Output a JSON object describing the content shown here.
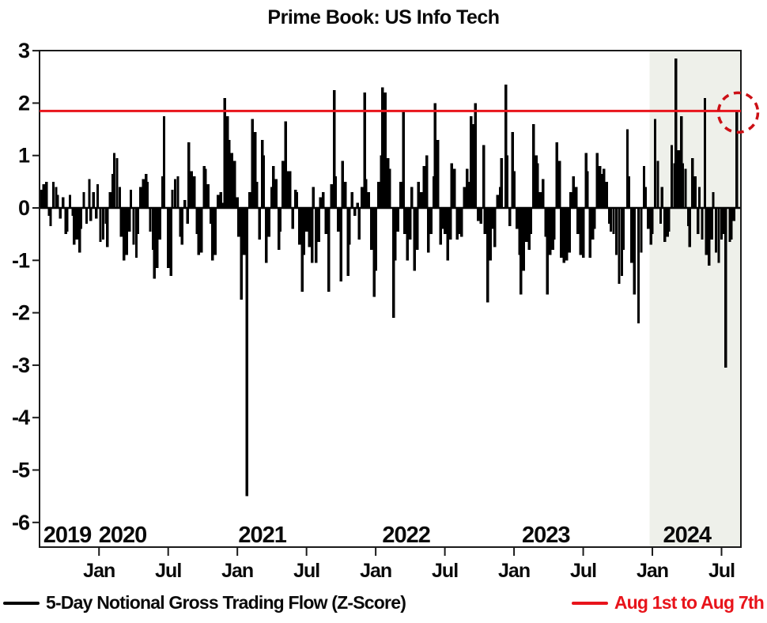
{
  "title": "Prime Book: US Info Tech",
  "legend": {
    "series_label": "5-Day Notional Gross Trading Flow (Z-Score)",
    "reference_label": "Aug 1st to Aug 7th"
  },
  "colors": {
    "bar": "#000000",
    "reference_line": "#e8141b",
    "highlight_circle": "#cc1016",
    "shaded_region": "#eef0ea",
    "frame": "#1a1a1a"
  },
  "chart_data": {
    "type": "bar",
    "title": "Prime Book: US Info Tech",
    "xlabel": "",
    "ylabel": "",
    "x_unit": "decimal_year",
    "x_domain": [
      2019.57,
      2024.64
    ],
    "ylim": [
      -6,
      3
    ],
    "grid": false,
    "legend_position": "bottom",
    "y_ticks": [
      3,
      2,
      1,
      0,
      -1,
      -2,
      -3,
      -4,
      -5,
      -6
    ],
    "x_ticks": [
      {
        "t": 2020.0,
        "label": "Jan"
      },
      {
        "t": 2020.5,
        "label": "Jul"
      },
      {
        "t": 2021.0,
        "label": "Jan"
      },
      {
        "t": 2021.5,
        "label": "Jul"
      },
      {
        "t": 2022.0,
        "label": "Jan"
      },
      {
        "t": 2022.5,
        "label": "Jul"
      },
      {
        "t": 2023.0,
        "label": "Jan"
      },
      {
        "t": 2023.5,
        "label": "Jul"
      },
      {
        "t": 2024.0,
        "label": "Jan"
      },
      {
        "t": 2024.5,
        "label": "Jul"
      }
    ],
    "year_labels": [
      {
        "t": 2019.77,
        "label": "2019"
      },
      {
        "t": 2020.17,
        "label": "2020"
      },
      {
        "t": 2021.18,
        "label": "2021"
      },
      {
        "t": 2022.22,
        "label": "2022"
      },
      {
        "t": 2023.23,
        "label": "2023"
      },
      {
        "t": 2024.25,
        "label": "2024"
      }
    ],
    "series_label": "5-Day Notional Gross Trading Flow (Z-Score)",
    "reference_line": {
      "value": 1.85,
      "label": "Aug 1st to Aug 7th"
    },
    "highlight_circle": {
      "t": 2024.62,
      "value": 1.82,
      "radius": 25,
      "style": "dashed"
    },
    "shaded_region": {
      "from": 2023.98,
      "to": 2024.64
    },
    "bars": [
      [
        2019.58,
        0.35
      ],
      [
        2019.6,
        0.45
      ],
      [
        2019.62,
        0.5
      ],
      [
        2019.64,
        -0.15
      ],
      [
        2019.65,
        -0.35
      ],
      [
        2019.67,
        0.5
      ],
      [
        2019.69,
        0.4
      ],
      [
        2019.7,
        0.25
      ],
      [
        2019.72,
        -0.2
      ],
      [
        2019.74,
        0.2
      ],
      [
        2019.76,
        -0.5
      ],
      [
        2019.77,
        -0.45
      ],
      [
        2019.79,
        0.25
      ],
      [
        2019.81,
        -0.15
      ],
      [
        2019.82,
        -0.7
      ],
      [
        2019.84,
        -0.6
      ],
      [
        2019.86,
        -0.85
      ],
      [
        2019.87,
        -0.4
      ],
      [
        2019.89,
        0.3
      ],
      [
        2019.91,
        -0.3
      ],
      [
        2019.93,
        0.55
      ],
      [
        2019.94,
        -0.25
      ],
      [
        2019.96,
        0.3
      ],
      [
        2019.98,
        -0.2
      ],
      [
        2019.99,
        0.45
      ],
      [
        2020.01,
        -0.65
      ],
      [
        2020.03,
        -0.6
      ],
      [
        2020.05,
        -0.3
      ],
      [
        2020.06,
        -0.75
      ],
      [
        2020.08,
        0.3
      ],
      [
        2020.1,
        0.65
      ],
      [
        2020.11,
        1.05
      ],
      [
        2020.13,
        0.95
      ],
      [
        2020.15,
        0.4
      ],
      [
        2020.16,
        -0.55
      ],
      [
        2020.18,
        -1.0
      ],
      [
        2020.2,
        -0.9
      ],
      [
        2020.22,
        -0.45
      ],
      [
        2020.23,
        0.35
      ],
      [
        2020.25,
        -0.7
      ],
      [
        2020.27,
        -0.95
      ],
      [
        2020.28,
        -0.5
      ],
      [
        2020.3,
        0.4
      ],
      [
        2020.32,
        0.55
      ],
      [
        2020.34,
        0.65
      ],
      [
        2020.35,
        0.5
      ],
      [
        2020.37,
        -0.45
      ],
      [
        2020.39,
        -0.8
      ],
      [
        2020.4,
        -1.35
      ],
      [
        2020.42,
        -1.15
      ],
      [
        2020.44,
        -0.6
      ],
      [
        2020.46,
        0.6
      ],
      [
        2020.47,
        1.75
      ],
      [
        2020.5,
        -1.15
      ],
      [
        2020.52,
        -1.3
      ],
      [
        2020.53,
        0.35
      ],
      [
        2020.55,
        0.55
      ],
      [
        2020.57,
        0.6
      ],
      [
        2020.59,
        -0.55
      ],
      [
        2020.6,
        -0.7
      ],
      [
        2020.62,
        0.15
      ],
      [
        2020.64,
        -0.3
      ],
      [
        2020.65,
        1.25
      ],
      [
        2020.67,
        0.7
      ],
      [
        2020.69,
        0.6
      ],
      [
        2020.71,
        -0.5
      ],
      [
        2020.72,
        -0.9
      ],
      [
        2020.74,
        -0.85
      ],
      [
        2020.76,
        0.8
      ],
      [
        2020.77,
        0.75
      ],
      [
        2020.79,
        0.45
      ],
      [
        2020.81,
        -0.3
      ],
      [
        2020.82,
        -1.0
      ],
      [
        2020.84,
        -0.9
      ],
      [
        2020.86,
        0.25
      ],
      [
        2020.88,
        0.3
      ],
      [
        2020.89,
        0.1
      ],
      [
        2020.91,
        2.1
      ],
      [
        2020.93,
        1.75
      ],
      [
        2020.94,
        1.3
      ],
      [
        2020.96,
        1.05
      ],
      [
        2020.98,
        0.9
      ],
      [
        2021.0,
        0.2
      ],
      [
        2021.01,
        -0.55
      ],
      [
        2021.03,
        -1.75
      ],
      [
        2021.05,
        -0.9
      ],
      [
        2021.07,
        -5.5
      ],
      [
        2021.09,
        0.3
      ],
      [
        2021.11,
        1.7
      ],
      [
        2021.13,
        1.45
      ],
      [
        2021.14,
        0.5
      ],
      [
        2021.16,
        -0.6
      ],
      [
        2021.18,
        1.3
      ],
      [
        2021.19,
        1.0
      ],
      [
        2021.21,
        -1.05
      ],
      [
        2021.23,
        -0.55
      ],
      [
        2021.25,
        0.4
      ],
      [
        2021.26,
        0.8
      ],
      [
        2021.28,
        0.55
      ],
      [
        2021.3,
        -0.8
      ],
      [
        2021.31,
        -0.45
      ],
      [
        2021.33,
        0.9
      ],
      [
        2021.35,
        1.65
      ],
      [
        2021.37,
        0.7
      ],
      [
        2021.38,
        0.7
      ],
      [
        2021.4,
        -0.4
      ],
      [
        2021.42,
        0.35
      ],
      [
        2021.43,
        0.3
      ],
      [
        2021.45,
        -0.7
      ],
      [
        2021.47,
        -1.6
      ],
      [
        2021.48,
        -0.9
      ],
      [
        2021.5,
        -0.45
      ],
      [
        2021.52,
        -0.75
      ],
      [
        2021.54,
        -1.05
      ],
      [
        2021.55,
        0.4
      ],
      [
        2021.57,
        -1.05
      ],
      [
        2021.59,
        -0.65
      ],
      [
        2021.6,
        0.2
      ],
      [
        2021.62,
        0.3
      ],
      [
        2021.64,
        -0.5
      ],
      [
        2021.66,
        -1.6
      ],
      [
        2021.68,
        0.45
      ],
      [
        2021.7,
        2.25
      ],
      [
        2021.71,
        0.6
      ],
      [
        2021.73,
        -0.45
      ],
      [
        2021.75,
        -1.4
      ],
      [
        2021.76,
        0.9
      ],
      [
        2021.78,
        0.5
      ],
      [
        2021.8,
        -1.3
      ],
      [
        2021.81,
        -0.7
      ],
      [
        2021.83,
        0.3
      ],
      [
        2021.85,
        -0.15
      ],
      [
        2021.87,
        0.1
      ],
      [
        2021.88,
        -0.6
      ],
      [
        2021.9,
        0.4
      ],
      [
        2021.92,
        2.2
      ],
      [
        2021.93,
        0.55
      ],
      [
        2021.95,
        0.3
      ],
      [
        2021.97,
        -0.8
      ],
      [
        2021.99,
        -1.7
      ],
      [
        2022.0,
        -1.2
      ],
      [
        2022.02,
        0.5
      ],
      [
        2022.04,
        1.0
      ],
      [
        2022.05,
        2.3
      ],
      [
        2022.07,
        2.2
      ],
      [
        2022.09,
        0.95
      ],
      [
        2022.1,
        0.75
      ],
      [
        2022.13,
        -2.1
      ],
      [
        2022.14,
        -1.0
      ],
      [
        2022.16,
        -0.45
      ],
      [
        2022.18,
        0.5
      ],
      [
        2022.2,
        1.85
      ],
      [
        2022.21,
        -0.5
      ],
      [
        2022.23,
        -1.0
      ],
      [
        2022.25,
        -0.6
      ],
      [
        2022.26,
        0.4
      ],
      [
        2022.28,
        -1.2
      ],
      [
        2022.3,
        -0.8
      ],
      [
        2022.31,
        0.5
      ],
      [
        2022.33,
        0.3
      ],
      [
        2022.35,
        0.8
      ],
      [
        2022.37,
        1.0
      ],
      [
        2022.38,
        -0.85
      ],
      [
        2022.4,
        -0.5
      ],
      [
        2022.42,
        0.6
      ],
      [
        2022.43,
        2.0
      ],
      [
        2022.45,
        1.3
      ],
      [
        2022.47,
        -0.7
      ],
      [
        2022.49,
        -0.4
      ],
      [
        2022.5,
        -0.5
      ],
      [
        2022.52,
        -1.0
      ],
      [
        2022.54,
        -0.6
      ],
      [
        2022.55,
        0.85
      ],
      [
        2022.57,
        0.75
      ],
      [
        2022.59,
        -0.6
      ],
      [
        2022.6,
        -0.5
      ],
      [
        2022.62,
        -0.55
      ],
      [
        2022.64,
        0.4
      ],
      [
        2022.66,
        0.75
      ],
      [
        2022.67,
        0.5
      ],
      [
        2022.69,
        1.75
      ],
      [
        2022.71,
        1.6
      ],
      [
        2022.72,
        2.0
      ],
      [
        2022.74,
        -0.25
      ],
      [
        2022.76,
        -0.3
      ],
      [
        2022.78,
        1.2
      ],
      [
        2022.79,
        -0.5
      ],
      [
        2022.81,
        -1.8
      ],
      [
        2022.83,
        -1.0
      ],
      [
        2022.84,
        -0.4
      ],
      [
        2022.86,
        -0.75
      ],
      [
        2022.88,
        0.25
      ],
      [
        2022.9,
        0.4
      ],
      [
        2022.91,
        0.95
      ],
      [
        2022.94,
        2.35
      ],
      [
        2022.95,
        1.0
      ],
      [
        2022.97,
        -0.35
      ],
      [
        2022.99,
        1.45
      ],
      [
        2023.0,
        0.7
      ],
      [
        2023.02,
        -0.4
      ],
      [
        2023.04,
        -0.9
      ],
      [
        2023.05,
        -1.65
      ],
      [
        2023.07,
        -1.2
      ],
      [
        2023.09,
        -0.65
      ],
      [
        2023.11,
        -0.8
      ],
      [
        2023.12,
        -0.5
      ],
      [
        2023.14,
        1.6
      ],
      [
        2023.16,
        1.0
      ],
      [
        2023.17,
        0.85
      ],
      [
        2023.19,
        0.3
      ],
      [
        2023.21,
        0.55
      ],
      [
        2023.23,
        -0.55
      ],
      [
        2023.24,
        -1.65
      ],
      [
        2023.26,
        -0.9
      ],
      [
        2023.28,
        -0.8
      ],
      [
        2023.29,
        -0.6
      ],
      [
        2023.31,
        1.25
      ],
      [
        2023.33,
        0.9
      ],
      [
        2023.34,
        -0.95
      ],
      [
        2023.36,
        -1.05
      ],
      [
        2023.38,
        -1.0
      ],
      [
        2023.4,
        -0.85
      ],
      [
        2023.41,
        0.3
      ],
      [
        2023.43,
        0.6
      ],
      [
        2023.45,
        0.4
      ],
      [
        2023.46,
        -0.5
      ],
      [
        2023.48,
        -0.9
      ],
      [
        2023.5,
        -0.95
      ],
      [
        2023.52,
        1.05
      ],
      [
        2023.53,
        0.7
      ],
      [
        2023.55,
        -0.95
      ],
      [
        2023.57,
        -0.6
      ],
      [
        2023.58,
        -0.4
      ],
      [
        2023.6,
        1.05
      ],
      [
        2023.62,
        0.8
      ],
      [
        2023.63,
        0.65
      ],
      [
        2023.65,
        0.75
      ],
      [
        2023.67,
        0.5
      ],
      [
        2023.69,
        -0.3
      ],
      [
        2023.7,
        -0.45
      ],
      [
        2023.72,
        -0.5
      ],
      [
        2023.74,
        -0.9
      ],
      [
        2023.76,
        -1.45
      ],
      [
        2023.78,
        -1.3
      ],
      [
        2023.79,
        -0.8
      ],
      [
        2023.82,
        1.5
      ],
      [
        2023.83,
        0.6
      ],
      [
        2023.85,
        -1.05
      ],
      [
        2023.87,
        -1.65
      ],
      [
        2023.9,
        -2.2
      ],
      [
        2023.92,
        -0.85
      ],
      [
        2023.94,
        0.8
      ],
      [
        2023.95,
        0.4
      ],
      [
        2023.97,
        -0.4
      ],
      [
        2023.99,
        -0.7
      ],
      [
        2024.0,
        -0.5
      ],
      [
        2024.02,
        1.7
      ],
      [
        2024.04,
        0.9
      ],
      [
        2024.06,
        -0.3
      ],
      [
        2024.07,
        0.4
      ],
      [
        2024.09,
        -0.65
      ],
      [
        2024.11,
        -0.55
      ],
      [
        2024.12,
        -0.45
      ],
      [
        2024.14,
        1.2
      ],
      [
        2024.16,
        0.85
      ],
      [
        2024.17,
        2.85
      ],
      [
        2024.19,
        1.1
      ],
      [
        2024.21,
        1.75
      ],
      [
        2024.22,
        0.85
      ],
      [
        2024.24,
        0.75
      ],
      [
        2024.26,
        -0.35
      ],
      [
        2024.27,
        -0.75
      ],
      [
        2024.29,
        0.95
      ],
      [
        2024.31,
        0.6
      ],
      [
        2024.33,
        -0.5
      ],
      [
        2024.34,
        0.4
      ],
      [
        2024.36,
        -0.6
      ],
      [
        2024.38,
        2.1
      ],
      [
        2024.39,
        -0.9
      ],
      [
        2024.41,
        -1.1
      ],
      [
        2024.43,
        -0.6
      ],
      [
        2024.44,
        0.3
      ],
      [
        2024.46,
        -0.85
      ],
      [
        2024.48,
        -1.05
      ],
      [
        2024.5,
        -0.6
      ],
      [
        2024.51,
        -0.5
      ],
      [
        2024.53,
        -3.05
      ],
      [
        2024.56,
        -0.65
      ],
      [
        2024.57,
        -0.6
      ],
      [
        2024.59,
        -0.25
      ],
      [
        2024.61,
        1.85
      ]
    ]
  }
}
